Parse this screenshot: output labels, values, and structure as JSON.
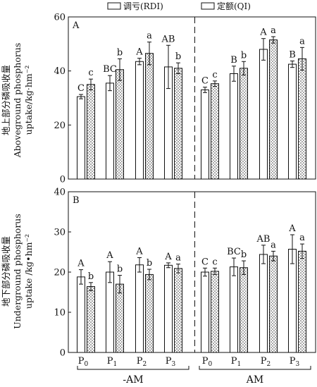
{
  "legend": [
    {
      "label": "调亏(RDI)",
      "pattern": "plain"
    },
    {
      "label": "定额(QI)",
      "pattern": "dotted"
    }
  ],
  "colors": {
    "bar_fill": "#ffffff",
    "stroke": "#111111",
    "dots": "#333333"
  },
  "x_groups": [
    {
      "label": "-AM",
      "ticks": [
        "P0",
        "P1",
        "P2",
        "P3"
      ]
    },
    {
      "label": "AM",
      "ticks": [
        "P0",
        "P1",
        "P2",
        "P3"
      ]
    }
  ],
  "chart_data": [
    {
      "type": "bar",
      "panel_label": "A",
      "ylabel_lines": [
        "地上部分磷吸收量",
        "Aboveground phosphorus",
        "uptake/kg·hm⁻²"
      ],
      "ylim": [
        0,
        60
      ],
      "yticks": [
        0,
        20,
        40,
        60
      ],
      "categories": [
        "-AM P0",
        "-AM P1",
        "-AM P2",
        "-AM P3",
        "AM P0",
        "AM P1",
        "AM P2",
        "AM P3"
      ],
      "series": [
        {
          "name": "调亏(RDI)",
          "values": [
            30.5,
            35.5,
            43.5,
            41.5,
            33,
            39,
            48,
            42.5
          ],
          "errors": [
            0.8,
            2.8,
            1.2,
            8,
            1,
            2.8,
            4,
            1.2
          ],
          "letters": [
            "C",
            "BC",
            "A",
            "AB",
            "C",
            "B",
            "A",
            "B"
          ]
        },
        {
          "name": "定额(QI)",
          "values": [
            35,
            40.5,
            46.5,
            41,
            35.3,
            41,
            51.5,
            44.5
          ],
          "errors": [
            2,
            4,
            4.2,
            2,
            1,
            2.5,
            1.2,
            4.2
          ],
          "letters": [
            "c",
            "b",
            "a",
            "b",
            "c",
            "b",
            "a",
            "a"
          ]
        }
      ]
    },
    {
      "type": "bar",
      "panel_label": "B",
      "ylabel_lines": [
        "地下部分磷吸收量",
        "Underground phosphorus",
        "uptake /kg•hm⁻²"
      ],
      "ylim": [
        0,
        40
      ],
      "yticks": [
        0,
        10,
        20,
        30,
        40
      ],
      "categories": [
        "-AM P0",
        "-AM P1",
        "-AM P2",
        "-AM P3",
        "AM P0",
        "AM P1",
        "AM P2",
        "AM P3"
      ],
      "series": [
        {
          "name": "调亏(RDI)",
          "values": [
            18.8,
            20,
            21.8,
            21.7,
            20,
            21.3,
            24.4,
            25.7
          ],
          "errors": [
            1.8,
            2.6,
            1.8,
            0.6,
            1,
            2.2,
            2.3,
            3.6
          ],
          "letters": [
            "A",
            "A",
            "A",
            "A",
            "C",
            "BC",
            "AB",
            "A"
          ]
        },
        {
          "name": "定额(QI)",
          "values": [
            16.4,
            17,
            19.4,
            20.9,
            20.2,
            21.1,
            24,
            25.2
          ],
          "errors": [
            1,
            2.2,
            1.3,
            1.1,
            0.8,
            1.7,
            1.2,
            1.8
          ],
          "letters": [
            "b",
            "b",
            "b",
            "a",
            "c",
            "b",
            "a",
            "a"
          ]
        }
      ]
    }
  ]
}
